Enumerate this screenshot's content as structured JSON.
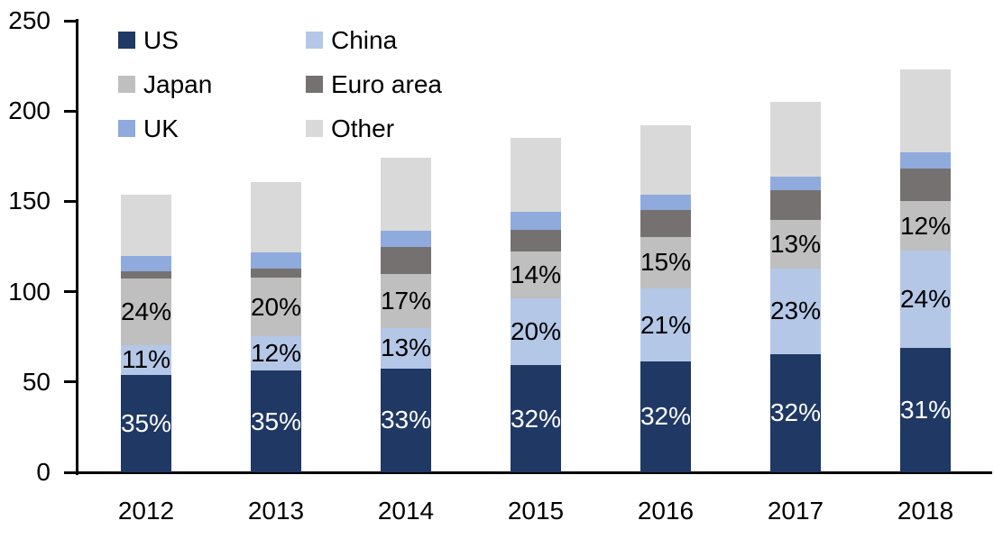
{
  "chart_data": {
    "type": "bar",
    "stacked": true,
    "title": "",
    "categories": [
      "2012",
      "2013",
      "2014",
      "2015",
      "2016",
      "2017",
      "2018"
    ],
    "y_axis": {
      "min": 0,
      "max": 250,
      "tick_step": 50,
      "ticks": [
        "0",
        "50",
        "100",
        "150",
        "200",
        "250"
      ]
    },
    "grid": "off",
    "legend_position": "top-left-inside",
    "series": [
      {
        "name": "US",
        "color": "#1F3864",
        "label_color": "#FFFFFF",
        "values": [
          53.7,
          56.2,
          57.4,
          59.2,
          61.4,
          65.6,
          69.1
        ],
        "labels": [
          "35%",
          "35%",
          "33%",
          "32%",
          "32%",
          "32%",
          "31%"
        ]
      },
      {
        "name": "China",
        "color": "#B4C7E7",
        "label_color": "#000000",
        "values": [
          16.9,
          19.3,
          22.6,
          37.0,
          40.3,
          47.2,
          53.5
        ],
        "labels": [
          "11%",
          "12%",
          "13%",
          "20%",
          "21%",
          "23%",
          "24%"
        ]
      },
      {
        "name": "Japan",
        "color": "#BFBFBF",
        "label_color": "#000000",
        "values": [
          36.8,
          32.1,
          29.6,
          25.9,
          28.8,
          26.7,
          27.5
        ],
        "labels": [
          "24%",
          "20%",
          "17%",
          "14%",
          "15%",
          "13%",
          "12%"
        ]
      },
      {
        "name": "Euro area",
        "color": "#767171",
        "values": [
          4.1,
          5.0,
          15.0,
          12.0,
          14.5,
          16.5,
          18.0
        ]
      },
      {
        "name": "UK",
        "color": "#8FAADC",
        "values": [
          8.2,
          9.0,
          9.0,
          10.0,
          8.5,
          7.5,
          9.0
        ]
      },
      {
        "name": "Other",
        "color": "#D9D9D9",
        "values": [
          33.8,
          38.9,
          40.4,
          40.9,
          38.5,
          41.5,
          45.9
        ]
      }
    ],
    "totals": [
      153.5,
      160.5,
      174,
      185,
      192,
      205,
      223
    ],
    "axis_color": "#000000",
    "background_color": "#FFFFFF"
  }
}
